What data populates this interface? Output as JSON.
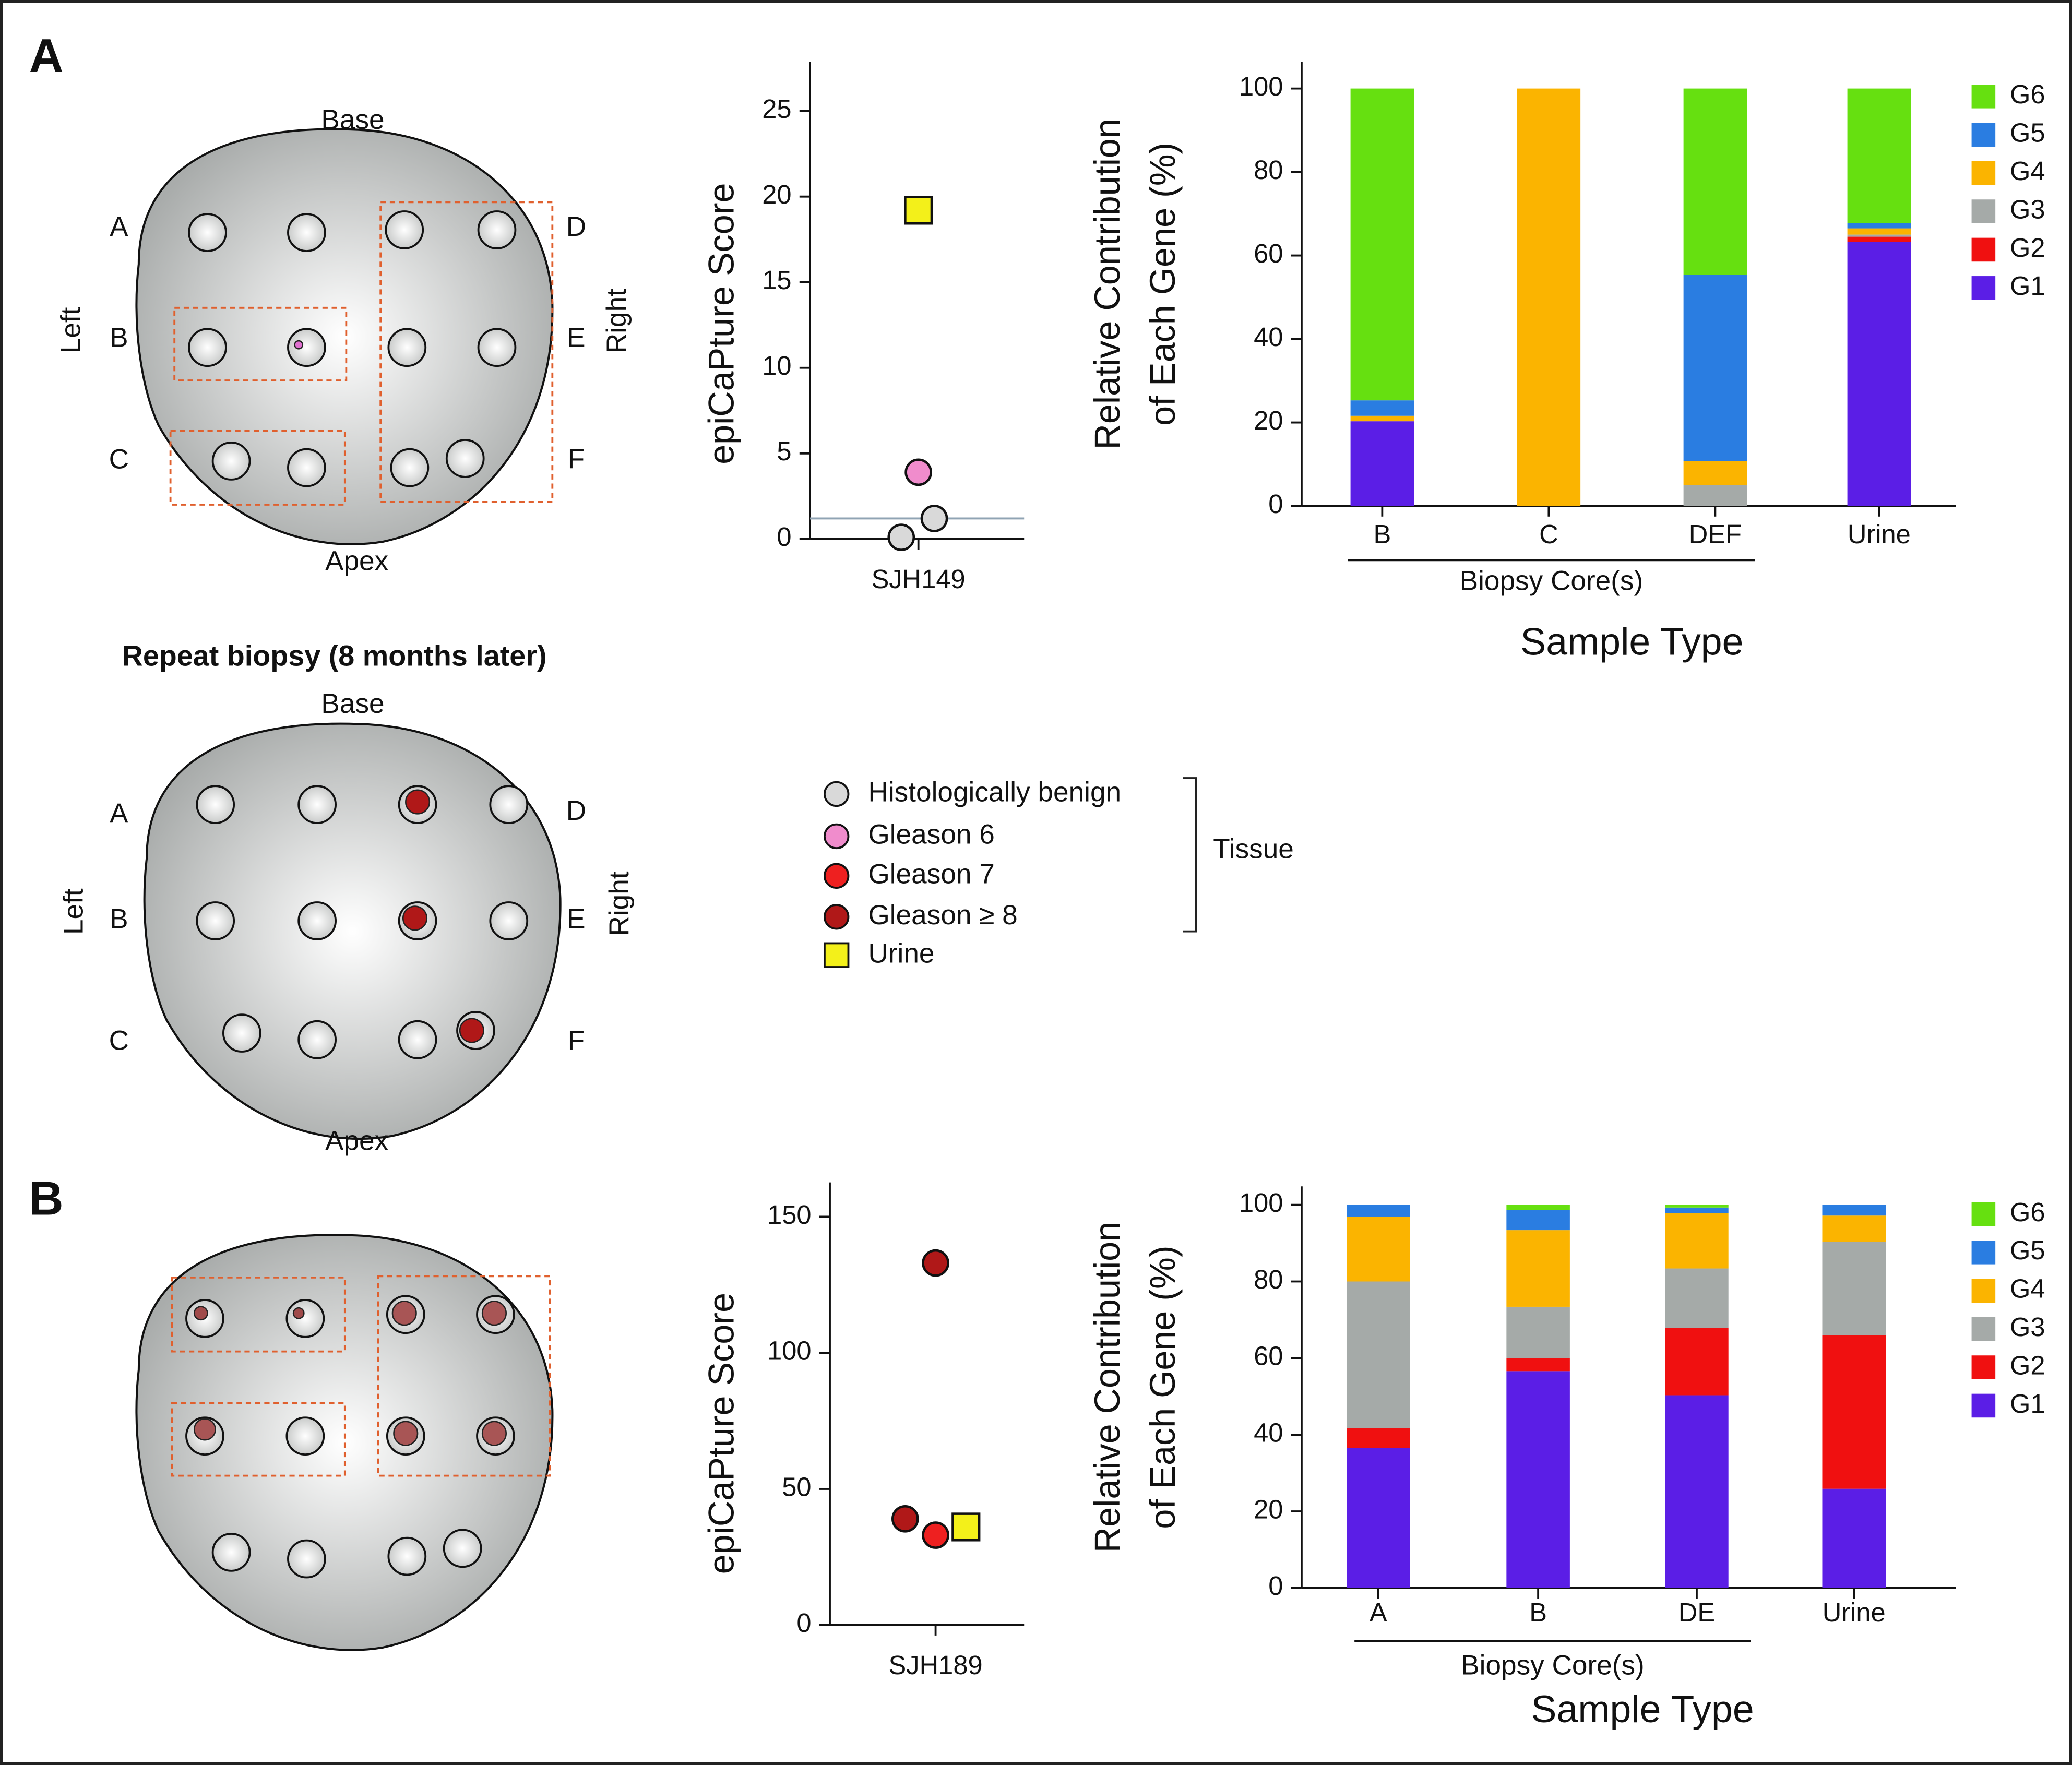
{
  "panels": [
    "A",
    "B"
  ],
  "repeat_title": "Repeat biopsy (8 months later)",
  "diagrams": [
    {
      "base": "Base",
      "apex": "Apex",
      "left": "Left",
      "right": "Right",
      "rows_left": [
        "A",
        "B",
        "C"
      ],
      "rows_right": [
        "D",
        "E",
        "F"
      ]
    },
    {
      "base": "Base",
      "apex": "Apex",
      "left": "Left",
      "right": "Right",
      "rows_left": [
        "A",
        "B",
        "C"
      ],
      "rows_right": [
        "D",
        "E",
        "F"
      ]
    }
  ],
  "legend": {
    "items": [
      {
        "label": "Histologically benign",
        "color": "#d9d9d9",
        "shape": "circle"
      },
      {
        "label": "Gleason 6",
        "color": "#f08ccc",
        "shape": "circle"
      },
      {
        "label": "Gleason 7",
        "color": "#ee2020",
        "shape": "circle"
      },
      {
        "label": "Gleason ≥ 8",
        "color": "#b01818",
        "shape": "circle"
      },
      {
        "label": "Urine",
        "color": "#f3f01a",
        "shape": "square"
      }
    ],
    "group": "Tissue"
  },
  "chart_data": [
    {
      "type": "scatter",
      "ylabel": "epiCaPture Score",
      "categories": [
        "SJH149"
      ],
      "values": [
        0.1,
        1.2,
        3.9,
        19.2
      ],
      "colors": [
        "#d9d9d9",
        "#d9d9d9",
        "#f08ccc",
        "#f3f01a"
      ],
      "shapes": [
        "circle",
        "circle",
        "circle",
        "square"
      ],
      "reference_line": 1.2,
      "ylim": [
        0,
        25
      ],
      "yticks": [
        0,
        5,
        10,
        15,
        20,
        25
      ]
    },
    {
      "type": "bar",
      "stacked": true,
      "ylabel": [
        "Relative Contribution",
        "of Each Gene (%)"
      ],
      "categories": [
        "B",
        "C",
        "DEF",
        "Urine"
      ],
      "group_label": "Biopsy Core(s)",
      "xlabel": "Sample Type",
      "ylim": [
        0,
        100
      ],
      "yticks": [
        0,
        20,
        40,
        60,
        80,
        100
      ],
      "series": [
        {
          "name": "G1",
          "color": "#5b1ee6",
          "values": [
            20.3,
            0,
            0,
            63.3
          ]
        },
        {
          "name": "G2",
          "color": "#f01010",
          "values": [
            0,
            0,
            0,
            1.2
          ]
        },
        {
          "name": "G3",
          "color": "#a5aaa8",
          "values": [
            0,
            0,
            5,
            0.5
          ]
        },
        {
          "name": "G4",
          "color": "#fbb400",
          "values": [
            1.3,
            100,
            5.8,
            1.5
          ]
        },
        {
          "name": "G5",
          "color": "#2a7de1",
          "values": [
            3.7,
            0,
            44.6,
            1.3
          ]
        },
        {
          "name": "G6",
          "color": "#66e010",
          "values": [
            74.7,
            0,
            44.6,
            32.2
          ]
        }
      ]
    },
    {
      "type": "scatter",
      "ylabel": "epiCaPture Score",
      "categories": [
        "SJH189"
      ],
      "values": [
        133,
        39,
        33,
        36
      ],
      "colors": [
        "#b01818",
        "#b01818",
        "#ee2020",
        "#f3f01a"
      ],
      "shapes": [
        "circle",
        "circle",
        "circle",
        "square"
      ],
      "ylim": [
        0,
        150
      ],
      "yticks": [
        0,
        50,
        100,
        150
      ]
    },
    {
      "type": "bar",
      "stacked": true,
      "ylabel": [
        "Relative Contribution",
        "of Each Gene (%)"
      ],
      "categories": [
        "A",
        "B",
        "DE",
        "Urine"
      ],
      "group_label": "Biopsy Core(s)",
      "xlabel": "Sample Type",
      "ylim": [
        0,
        100
      ],
      "yticks": [
        0,
        20,
        40,
        60,
        80,
        100
      ],
      "series": [
        {
          "name": "G1",
          "color": "#5b1ee6",
          "values": [
            36.6,
            56.6,
            50.3,
            25.9
          ]
        },
        {
          "name": "G2",
          "color": "#f01010",
          "values": [
            5.1,
            3.4,
            17.6,
            40
          ]
        },
        {
          "name": "G3",
          "color": "#a5aaa8",
          "values": [
            38.3,
            13.4,
            15.5,
            24.4
          ]
        },
        {
          "name": "G4",
          "color": "#fbb400",
          "values": [
            16.9,
            20,
            14.5,
            6.9
          ]
        },
        {
          "name": "G5",
          "color": "#2a7de1",
          "values": [
            3.1,
            5.2,
            1.4,
            2.8
          ]
        },
        {
          "name": "G6",
          "color": "#66e010",
          "values": [
            0,
            1.4,
            0.7,
            0
          ]
        }
      ]
    }
  ]
}
